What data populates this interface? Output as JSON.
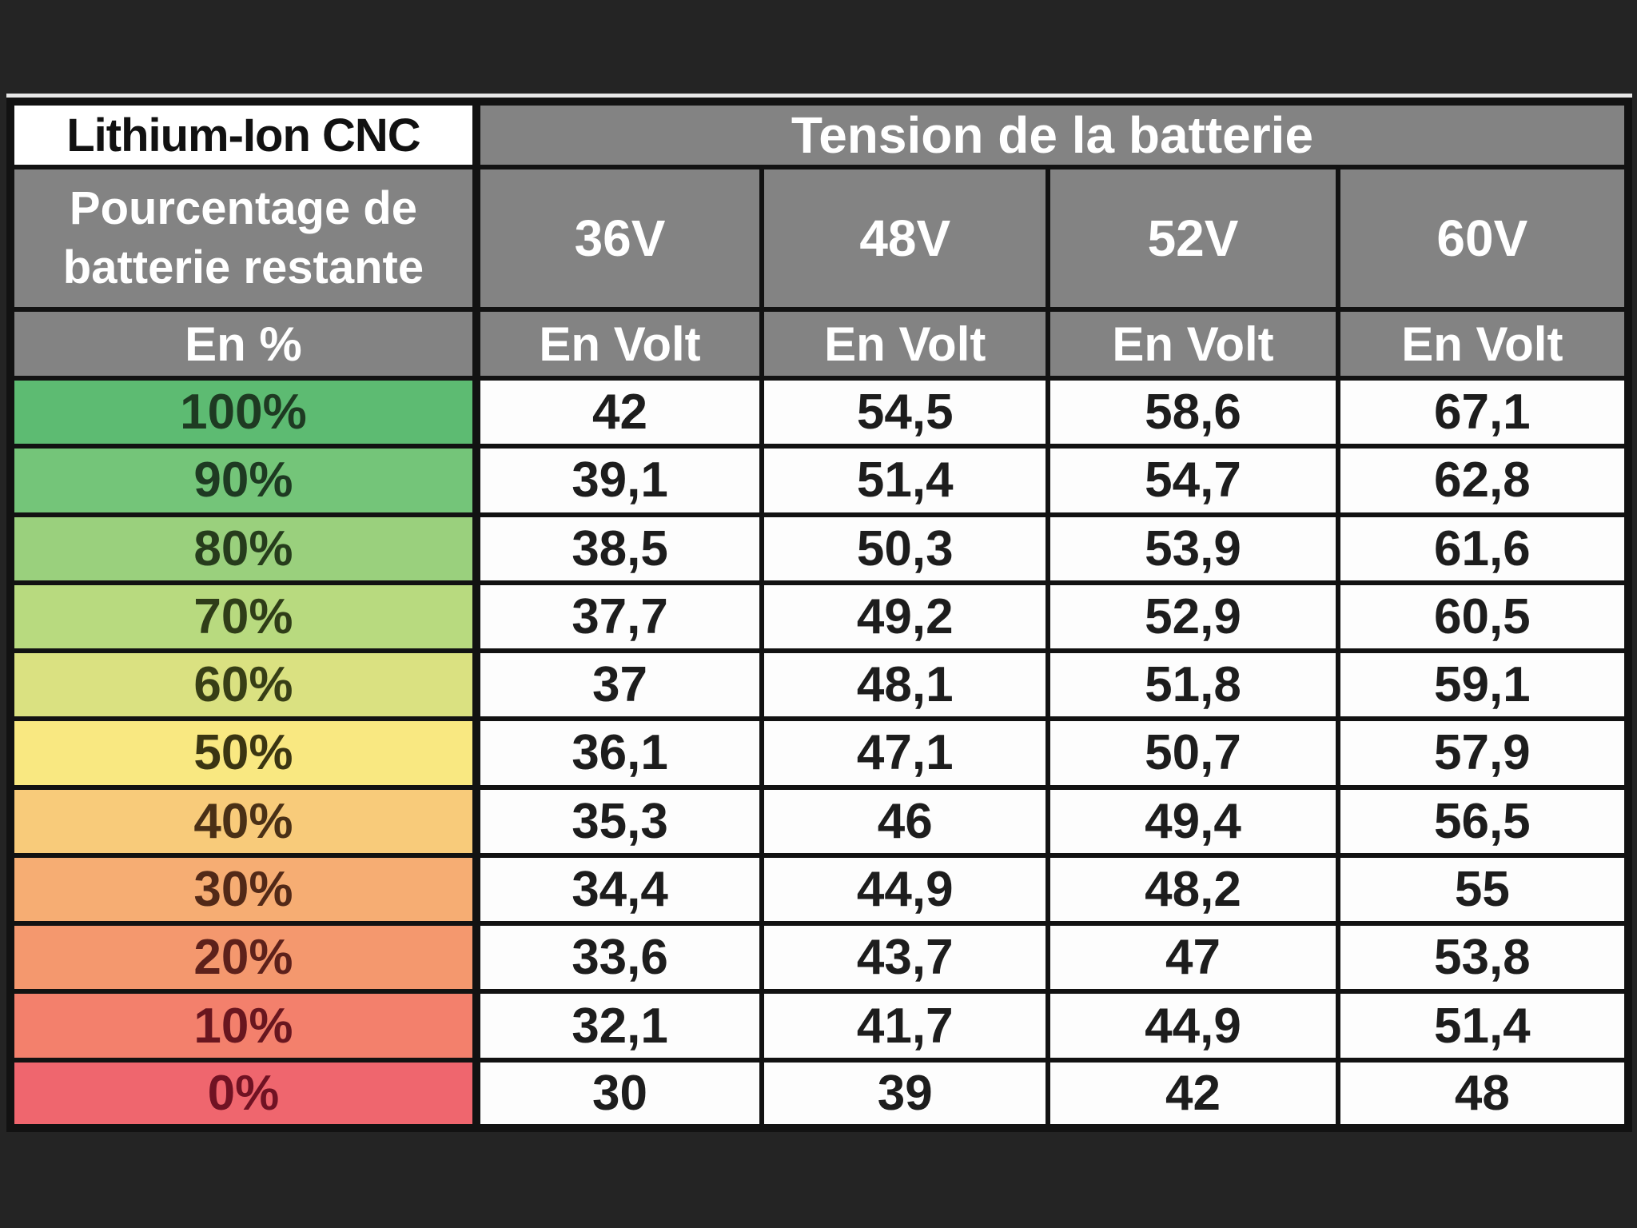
{
  "canvas": {
    "background": "#242424",
    "sheet_edge": "#e8e8e8"
  },
  "table": {
    "corner_label": "Lithium-Ion CNC",
    "group_header": "Tension de la batterie",
    "row_header_title": "Pourcentage de batterie restante",
    "percent_header": "En %",
    "unit_header": "En Volt",
    "voltages": [
      "36V",
      "48V",
      "52V",
      "60V"
    ],
    "style": {
      "header_bg": "#838383",
      "header_text": "#ffffff",
      "border": "#121212",
      "cell_bg": "#fdfdfd",
      "value_text": "#1d1d1d",
      "corner_bg": "#ffffff",
      "corner_text": "#111111"
    },
    "rows": [
      {
        "percent": "100%",
        "bg": "#5dbb72",
        "label_color": "#1e3a22",
        "values": [
          "42",
          "54,5",
          "58,6",
          "67,1"
        ]
      },
      {
        "percent": "90%",
        "bg": "#74c579",
        "label_color": "#1e3a22",
        "values": [
          "39,1",
          "51,4",
          "54,7",
          "62,8"
        ]
      },
      {
        "percent": "80%",
        "bg": "#9ad07d",
        "label_color": "#263c1c",
        "values": [
          "38,5",
          "50,3",
          "53,9",
          "61,6"
        ]
      },
      {
        "percent": "70%",
        "bg": "#b8da7f",
        "label_color": "#2f3d18",
        "values": [
          "37,7",
          "49,2",
          "52,9",
          "60,5"
        ]
      },
      {
        "percent": "60%",
        "bg": "#dae181",
        "label_color": "#373e16",
        "values": [
          "37",
          "48,1",
          "51,8",
          "59,1"
        ]
      },
      {
        "percent": "50%",
        "bg": "#f9e881",
        "label_color": "#3b3512",
        "values": [
          "36,1",
          "47,1",
          "50,7",
          "57,9"
        ]
      },
      {
        "percent": "40%",
        "bg": "#f8cb7a",
        "label_color": "#4a3016",
        "values": [
          "35,3",
          "46",
          "49,4",
          "56,5"
        ]
      },
      {
        "percent": "30%",
        "bg": "#f6ad73",
        "label_color": "#522917",
        "values": [
          "34,4",
          "44,9",
          "48,2",
          "55"
        ]
      },
      {
        "percent": "20%",
        "bg": "#f4986e",
        "label_color": "#5d211b",
        "values": [
          "33,6",
          "43,7",
          "47",
          "53,8"
        ]
      },
      {
        "percent": "10%",
        "bg": "#f3806c",
        "label_color": "#68161f",
        "values": [
          "32,1",
          "41,7",
          "44,9",
          "51,4"
        ]
      },
      {
        "percent": "0%",
        "bg": "#ef666e",
        "label_color": "#701223",
        "values": [
          "30",
          "39",
          "42",
          "48"
        ]
      }
    ]
  },
  "chart_data": {
    "type": "table",
    "title": "Lithium-Ion CNC — Tension de la batterie",
    "columns": [
      "Pourcentage de batterie restante (En %)",
      "36V (En Volt)",
      "48V (En Volt)",
      "52V (En Volt)",
      "60V (En Volt)"
    ],
    "rows": [
      [
        100,
        42,
        54.5,
        58.6,
        67.1
      ],
      [
        90,
        39.1,
        51.4,
        54.7,
        62.8
      ],
      [
        80,
        38.5,
        50.3,
        53.9,
        61.6
      ],
      [
        70,
        37.7,
        49.2,
        52.9,
        60.5
      ],
      [
        60,
        37,
        48.1,
        51.8,
        59.1
      ],
      [
        50,
        36.1,
        47.1,
        50.7,
        57.9
      ],
      [
        40,
        35.3,
        46,
        49.4,
        56.5
      ],
      [
        30,
        34.4,
        44.9,
        48.2,
        55
      ],
      [
        20,
        33.6,
        43.7,
        47,
        53.8
      ],
      [
        10,
        32.1,
        41.7,
        44.9,
        51.4
      ],
      [
        0,
        30,
        39,
        42,
        48
      ]
    ],
    "notes": "Decimal separator displayed as comma; percent column cells shaded on a green-to-red gradient from 100% down to 0%."
  }
}
